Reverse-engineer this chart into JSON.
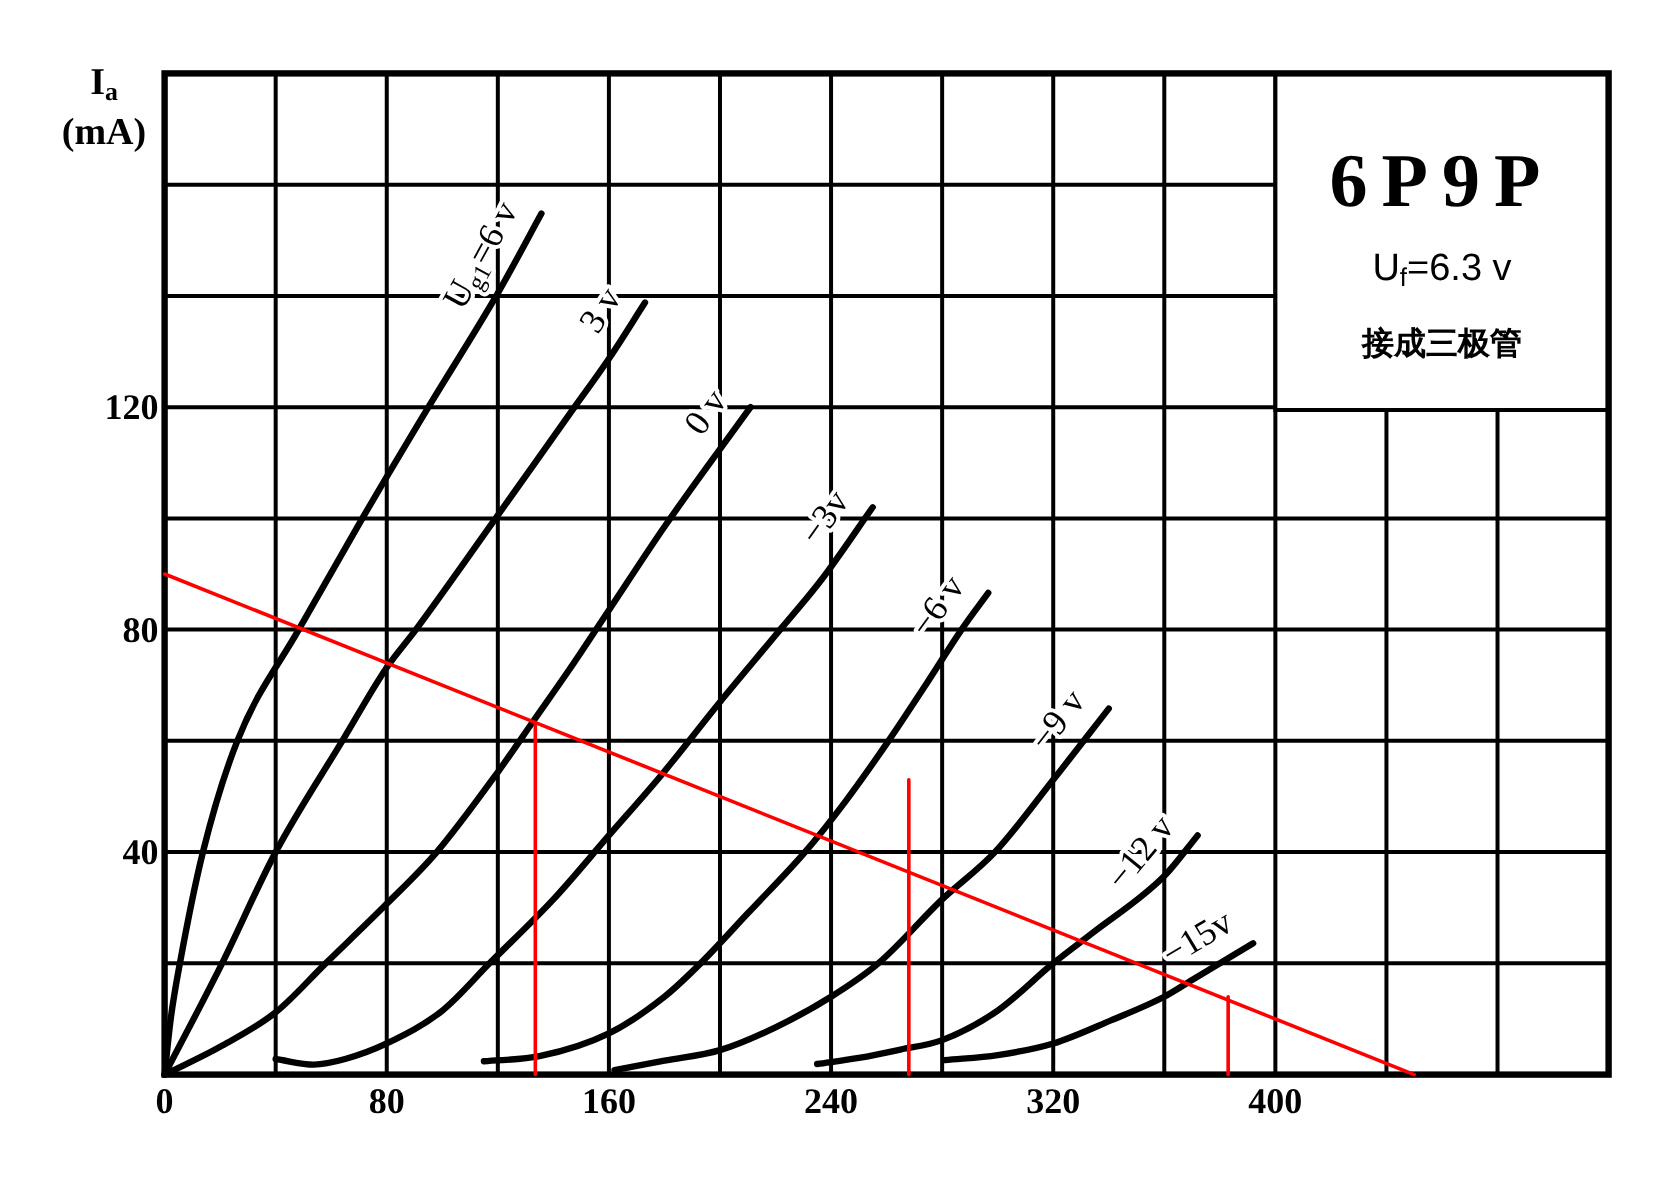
{
  "chart_data": {
    "type": "line",
    "title": "6P9P",
    "subtitle": "U$_{f}$=6.3 v",
    "annotations": [
      "接成三极管"
    ],
    "ylabel": "I$_{a}$ (mA)",
    "xlim": [
      0,
      520
    ],
    "ylim": [
      0,
      180
    ],
    "xticks": [
      0,
      {
        "value": 40,
        "label": null
      },
      80,
      {
        "value": 120,
        "label": null
      },
      160,
      {
        "value": 200,
        "label": null
      },
      240,
      {
        "value": 280,
        "label": null
      },
      320,
      {
        "value": 360,
        "label": null
      },
      400,
      {
        "value": 440,
        "label": null
      },
      {
        "value": 480,
        "label": null
      }
    ],
    "yticks": [
      {
        "value": 0,
        "label": null
      },
      {
        "value": 20,
        "label": null
      },
      40,
      {
        "value": 60,
        "label": null
      },
      80,
      {
        "value": 100,
        "label": null
      },
      120,
      {
        "value": 140,
        "label": null
      },
      {
        "value": 160,
        "label": null
      }
    ],
    "grid": true,
    "series": [
      {
        "name": "U$_{g1}$=6 v",
        "color": "#000000",
        "x": [
          0,
          2.2,
          5.5,
          13.8,
          26.2,
          48.3,
          71.2,
          95,
          120,
          135.7
        ],
        "values": [
          0,
          10,
          20,
          40,
          60,
          80,
          100,
          120,
          140.5,
          154.8
        ]
      },
      {
        "name": "3 v",
        "color": "#000000",
        "x": [
          0,
          20.7,
          40,
          64,
          80,
          90.5,
          119.2,
          147.6,
          160,
          173
        ],
        "values": [
          0,
          20,
          40,
          60,
          73.2,
          80,
          100,
          120,
          128.7,
          138.8
        ]
      },
      {
        "name": "0 v",
        "color": "#000000",
        "x": [
          0,
          20,
          40,
          58,
          80,
          98,
          120,
          133,
          146,
          160,
          180,
          211
        ],
        "values": [
          0,
          5,
          11.2,
          20,
          30.7,
          40,
          54.4,
          63.7,
          73,
          83.5,
          98.5,
          120
        ]
      },
      {
        "name": "−3v",
        "color": "#000000",
        "x": [
          40,
          53.8,
          65,
          80,
          100,
          117,
          140,
          160,
          179.3,
          200,
          220,
          236.6,
          255
        ],
        "values": [
          2.8,
          1.8,
          2.8,
          5.6,
          11.5,
          20,
          31.5,
          43,
          54.1,
          67,
          79,
          89,
          102
        ]
      },
      {
        "name": "−6 v",
        "color": "#000000",
        "x": [
          115,
          135,
          160,
          180,
          193,
          210,
          230.6,
          245,
          260.7,
          274,
          287,
          296.6
        ],
        "values": [
          2.4,
          3.3,
          7.4,
          14,
          20,
          29,
          40,
          49,
          60,
          70,
          80,
          86.6
        ]
      },
      {
        "name": "−9 v",
        "color": "#000000",
        "x": [
          162,
          180,
          200,
          220,
          240,
          257,
          280,
          299,
          320,
          340
        ],
        "values": [
          0.8,
          2.5,
          4.4,
          8.5,
          14,
          20,
          31.5,
          40,
          53,
          65.8
        ]
      },
      {
        "name": "−12 v",
        "color": "#000000",
        "x": [
          235,
          250,
          265,
          280,
          300,
          320,
          334,
          360,
          372
        ],
        "values": [
          1.9,
          3,
          4.5,
          6.2,
          11.5,
          20,
          25.4,
          35.7,
          43
        ]
      },
      {
        "name": "−15v",
        "color": "#000000",
        "x": [
          281,
          300,
          320,
          341,
          360,
          370,
          392
        ],
        "values": [
          2.6,
          3.5,
          5.6,
          9.8,
          14,
          17,
          23.6
        ]
      },
      {
        "color": "#ff0000",
        "x": [
          0,
          450
        ],
        "values": [
          90,
          0
        ]
      },
      {
        "color": "#ff0000",
        "x": [
          133.5,
          133.5
        ],
        "values": [
          63.3,
          0
        ]
      },
      {
        "color": "#ff0000",
        "x": [
          268,
          268
        ],
        "values": [
          53,
          0
        ]
      },
      {
        "color": "#ff0000",
        "x": [
          383,
          383
        ],
        "values": [
          14,
          0
        ]
      }
    ]
  }
}
